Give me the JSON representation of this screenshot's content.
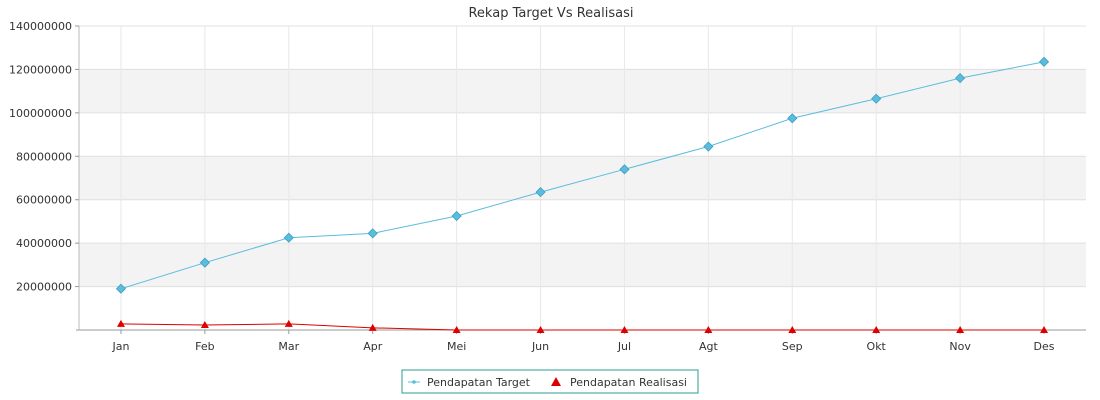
{
  "chart_data": {
    "type": "line",
    "title": "Rekap Target Vs Realisasi",
    "xlabel": "",
    "ylabel": "",
    "categories": [
      "Jan",
      "Feb",
      "Mar",
      "Apr",
      "Mei",
      "Jun",
      "Jul",
      "Agt",
      "Sep",
      "Okt",
      "Nov",
      "Des"
    ],
    "ylim": [
      0,
      140000000
    ],
    "yticks": [
      "20000000",
      "40000000",
      "60000000",
      "80000000",
      "100000000",
      "120000000",
      "140000000"
    ],
    "grid": true,
    "legend_position": "bottom-center",
    "series": [
      {
        "name": "Pendapatan Target",
        "color": "#5bbcdc",
        "marker": "diamond",
        "values": [
          19000000,
          31000000,
          42500000,
          44500000,
          52500000,
          63500000,
          74000000,
          84500000,
          97500000,
          106500000,
          116000000,
          123500000
        ]
      },
      {
        "name": "Pendapatan Realisasi",
        "color": "#dd0000",
        "marker": "triangle",
        "values": [
          2800000,
          2300000,
          2800000,
          1000000,
          0,
          0,
          0,
          0,
          0,
          0,
          0,
          0
        ]
      }
    ]
  }
}
